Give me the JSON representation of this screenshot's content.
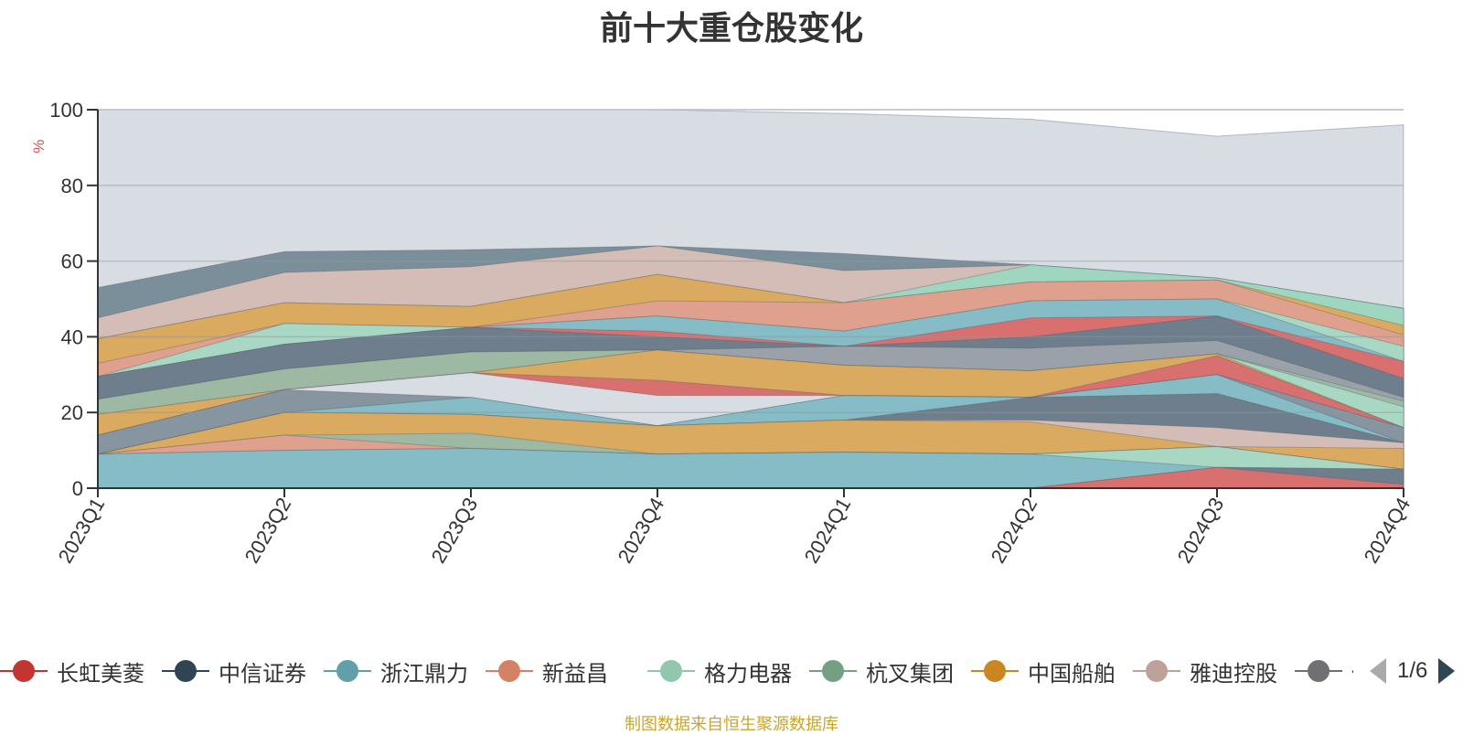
{
  "title": "前十大重仓股变化",
  "source_note": "制图数据来自恒生聚源数据库",
  "legend_page": "1/6",
  "chart_data": {
    "type": "area",
    "stacked": true,
    "title": "前十大重仓股变化",
    "ylabel": "%",
    "ylim": [
      0,
      100
    ],
    "yticks": [
      0,
      20,
      40,
      60,
      80,
      100
    ],
    "grid": true,
    "x": [
      "2023Q1",
      "2023Q2",
      "2023Q3",
      "2023Q4",
      "2024Q1",
      "2024Q2",
      "2024Q3",
      "2024Q4"
    ],
    "layers": [
      {
        "color": "#d8dce3",
        "values": [
          100,
          100,
          100,
          100,
          99,
          97.5,
          93,
          96
        ]
      },
      {
        "color": "#7b8f9a",
        "values": [
          53,
          62.5,
          63,
          64,
          62,
          59,
          55.5,
          47.5
        ]
      },
      {
        "color": "#d4bdb7",
        "values": [
          45,
          57,
          58.5,
          64,
          57.5,
          59,
          55.5,
          47.5
        ]
      },
      {
        "color": "#9fd6c0",
        "values": [
          39.5,
          49,
          48,
          56.5,
          49,
          59,
          55.5,
          47.5
        ]
      },
      {
        "color": "#d9aa60",
        "values": [
          39.5,
          49,
          48,
          56.5,
          49,
          54.5,
          55,
          43
        ]
      },
      {
        "color": "#e0a08e",
        "values": [
          33,
          43.5,
          42.5,
          49.5,
          49,
          54.5,
          55,
          40.5
        ]
      },
      {
        "color": "#a8d8c3",
        "values": [
          29.5,
          43.5,
          42.5,
          45.5,
          41.5,
          49.5,
          50,
          37.5
        ]
      },
      {
        "color": "#86bcc5",
        "values": [
          29.5,
          38,
          42.5,
          45.5,
          41.5,
          49.5,
          50,
          33.5
        ]
      },
      {
        "color": "#d97070",
        "values": [
          29.5,
          38,
          42.5,
          41.5,
          37.5,
          45,
          45.5,
          33.5
        ]
      },
      {
        "color": "#6e7e8c",
        "values": [
          29.5,
          38,
          42.5,
          40,
          37.5,
          40,
          45.5,
          29
        ]
      },
      {
        "color": "#9aa1a8",
        "values": [
          23.5,
          31.5,
          36,
          36.5,
          37.5,
          37,
          39,
          24
        ]
      },
      {
        "color": "#9db9a3",
        "values": [
          23.5,
          31.5,
          36,
          36.5,
          32.5,
          31,
          35.5,
          23
        ]
      },
      {
        "color": "#a8d8c3",
        "values": [
          19.5,
          26,
          30.5,
          36.5,
          32.5,
          31,
          35.5,
          21.5
        ]
      },
      {
        "color": "#d9aa60",
        "values": [
          19.5,
          26,
          30.5,
          36.5,
          32.5,
          31,
          35.5,
          16
        ]
      },
      {
        "color": "#d97070",
        "values": [
          14,
          26,
          30.5,
          28.5,
          24.5,
          24,
          35,
          16
        ]
      },
      {
        "color": "#d8dce3",
        "values": [
          14,
          26,
          30.5,
          24.5,
          24.5,
          24,
          30,
          16
        ]
      },
      {
        "color": "#8795a1",
        "values": [
          14,
          26,
          24,
          16.5,
          24.5,
          24,
          30,
          16
        ]
      },
      {
        "color": "#86bcc5",
        "values": [
          9,
          20,
          24,
          16.5,
          24.5,
          24,
          30,
          12
        ]
      },
      {
        "color": "#6e7e8c",
        "values": [
          9,
          20,
          19.5,
          16.5,
          18,
          24,
          25,
          12
        ]
      },
      {
        "color": "#d4bdb7",
        "values": [
          9,
          20,
          19.5,
          16.5,
          18,
          18,
          16,
          12
        ]
      },
      {
        "color": "#d9aa60",
        "values": [
          9,
          20,
          19.5,
          16.5,
          18,
          17.5,
          11,
          10.5
        ]
      },
      {
        "color": "#9db9a3",
        "values": [
          9,
          14,
          14.5,
          9,
          9.5,
          9,
          11,
          5
        ]
      },
      {
        "color": "#e0a08e",
        "values": [
          9,
          14,
          10.5,
          9,
          9.5,
          9,
          11,
          5
        ]
      },
      {
        "color": "#a8d8c3",
        "values": [
          9,
          10,
          10.5,
          9,
          9.5,
          9,
          11,
          5
        ]
      },
      {
        "color": "#86bcc5",
        "values": [
          9,
          10,
          10.5,
          9,
          9.5,
          9,
          5.5,
          5
        ]
      },
      {
        "color": "#6e7e8c",
        "values": [
          0,
          0,
          0,
          0,
          0,
          0,
          5.5,
          5
        ]
      },
      {
        "color": "#d97070",
        "values": [
          0,
          0,
          0,
          0,
          0,
          0,
          5.5,
          1
        ]
      }
    ],
    "legend": {
      "placement": "bottom",
      "items": [
        {
          "name": "长虹美菱",
          "color": "#c23531"
        },
        {
          "name": "中信证券",
          "color": "#2f4554"
        },
        {
          "name": "浙江鼎力",
          "color": "#61a0a8"
        },
        {
          "name": "新益昌",
          "color": "#d48265"
        },
        {
          "name": "格力电器",
          "color": "#91c7ae"
        },
        {
          "name": "杭叉集团",
          "color": "#749f83"
        },
        {
          "name": "中国船舶",
          "color": "#ca8622"
        },
        {
          "name": "雅迪控股",
          "color": "#bda29a"
        },
        {
          "name": "保利发展",
          "color": "#6e7074"
        }
      ]
    }
  }
}
